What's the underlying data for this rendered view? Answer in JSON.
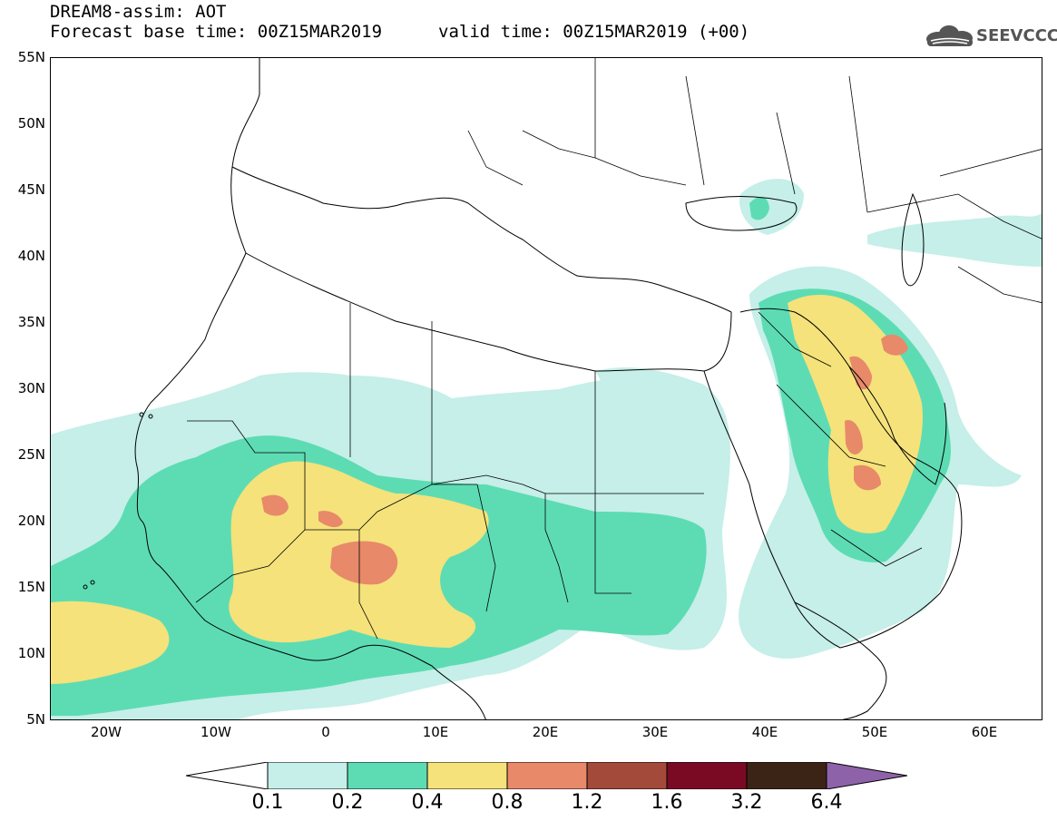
{
  "header": {
    "title": "DREAM8-assim: AOT",
    "base_time": "Forecast base time: 00Z15MAR2019",
    "valid_time": "valid time: 00Z15MAR2019 (+00)",
    "logo_text": "SEEVCCC"
  },
  "map": {
    "lat_labels": [
      "55N",
      "50N",
      "45N",
      "40N",
      "35N",
      "30N",
      "25N",
      "20N",
      "15N",
      "10N",
      "5N"
    ],
    "lon_labels": [
      "20W",
      "10W",
      "0",
      "10E",
      "20E",
      "30E",
      "40E",
      "50E",
      "60E"
    ],
    "lat_range": [
      5,
      55
    ],
    "lon_range": [
      -25,
      65
    ],
    "colors": {
      "land_border": "#000000",
      "background": "#ffffff"
    }
  },
  "legend": {
    "levels": [
      "0.1",
      "0.2",
      "0.4",
      "0.8",
      "1.2",
      "1.6",
      "3.2",
      "6.4"
    ],
    "colors": [
      "#ffffff",
      "#c5efe8",
      "#5ddcb4",
      "#f5e27a",
      "#e8896a",
      "#a44a3a",
      "#7a0a24",
      "#3b2416",
      "#8e62a8"
    ]
  }
}
